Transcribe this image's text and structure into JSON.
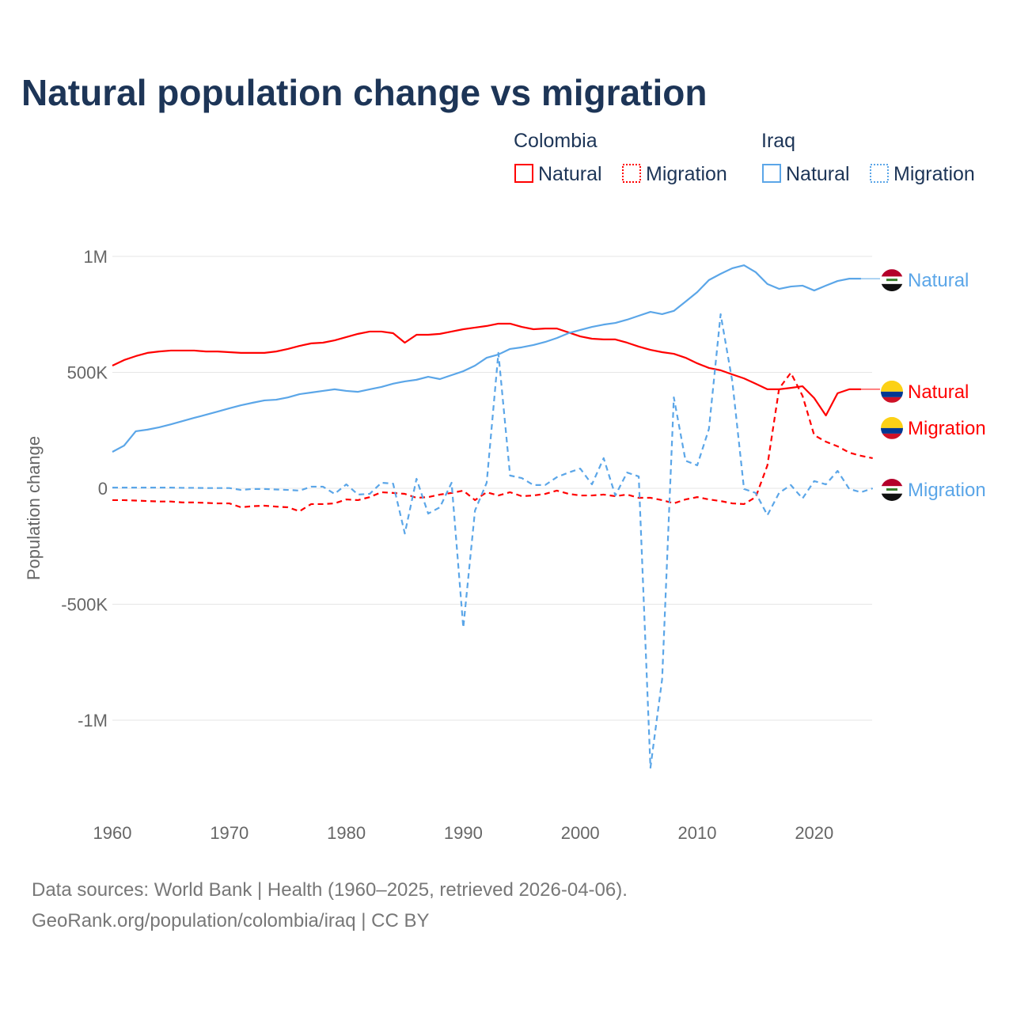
{
  "title": "Natural population change vs migration",
  "legend": {
    "groups": [
      {
        "name": "Colombia",
        "items": [
          "Natural",
          "Migration"
        ],
        "color": "#ff0000"
      },
      {
        "name": "Iraq",
        "items": [
          "Natural",
          "Migration"
        ],
        "color": "#5ba6e8"
      }
    ]
  },
  "footer": {
    "line1": "Data sources: World Bank | Health (1960–2025, retrieved 2026-04-06).",
    "line2": "GeoRank.org/population/colombia/iraq | CC BY"
  },
  "chart_data": {
    "type": "line",
    "title": "Natural population change vs migration",
    "xlabel": "",
    "ylabel": "Population change",
    "xlim": [
      1960,
      2025
    ],
    "ylim": [
      -1200000,
      1050000
    ],
    "x_ticks": [
      "1960",
      "1970",
      "1980",
      "1990",
      "2000",
      "2010",
      "2020"
    ],
    "y_ticks": [
      {
        "v": 1000000,
        "label": "1M"
      },
      {
        "v": 500000,
        "label": "500K"
      },
      {
        "v": 0,
        "label": "0"
      },
      {
        "v": -500000,
        "label": "-500K"
      },
      {
        "v": -1000000,
        "label": "-1M"
      }
    ],
    "grid": true,
    "start_year": 1960,
    "series": [
      {
        "name": "Colombia Natural",
        "label": "Natural",
        "color": "#ff0000",
        "dash": false,
        "flag": "colombia",
        "values_k": [
          529,
          553,
          570,
          584,
          590,
          594,
          594,
          594,
          590,
          590,
          587,
          584,
          584,
          584,
          590,
          601,
          614,
          625,
          628,
          638,
          652,
          666,
          676,
          676,
          669,
          628,
          662,
          662,
          666,
          676,
          686,
          693,
          700,
          710,
          710,
          696,
          686,
          689,
          689,
          672,
          655,
          645,
          642,
          642,
          628,
          611,
          597,
          587,
          580,
          563,
          539,
          519,
          509,
          491,
          474,
          451,
          427,
          427,
          433,
          440,
          389,
          314,
          410,
          427,
          427
        ]
      },
      {
        "name": "Colombia Migration",
        "label": "Migration",
        "color": "#ff0000",
        "dash": true,
        "flag": "colombia",
        "values_k": [
          -51,
          -51,
          -53,
          -55,
          -57,
          -57,
          -61,
          -61,
          -63,
          -65,
          -65,
          -82,
          -77,
          -75,
          -79,
          -82,
          -99,
          -68,
          -68,
          -65,
          -48,
          -51,
          -38,
          -17,
          -20,
          -24,
          -41,
          -38,
          -27,
          -20,
          -10,
          -51,
          -17,
          -31,
          -17,
          -34,
          -31,
          -24,
          -10,
          -24,
          -31,
          -31,
          -27,
          -34,
          -27,
          -41,
          -41,
          -51,
          -65,
          -48,
          -38,
          -48,
          -55,
          -65,
          -68,
          -38,
          99,
          430,
          498,
          399,
          229,
          201,
          181,
          154,
          140,
          130
        ]
      },
      {
        "name": "Iraq Natural",
        "label": "Natural",
        "color": "#5ba6e8",
        "dash": false,
        "flag": "iraq",
        "values_k": [
          157,
          184,
          246,
          253,
          263,
          276,
          290,
          304,
          317,
          331,
          345,
          358,
          369,
          379,
          382,
          392,
          406,
          413,
          420,
          427,
          420,
          416,
          427,
          437,
          451,
          461,
          468,
          481,
          471,
          488,
          505,
          529,
          563,
          577,
          601,
          608,
          618,
          631,
          648,
          669,
          683,
          696,
          706,
          713,
          727,
          744,
          761,
          751,
          765,
          805,
          846,
          898,
          925,
          949,
          962,
          932,
          881,
          860,
          870,
          874,
          853,
          874,
          894,
          904,
          904
        ]
      },
      {
        "name": "Iraq Migration",
        "label": "Migration",
        "color": "#5ba6e8",
        "dash": true,
        "flag": "iraq",
        "values_k": [
          3,
          3,
          3,
          3,
          3,
          3,
          2,
          2,
          1,
          1,
          1,
          -7,
          -3,
          -3,
          -5,
          -7,
          -10,
          7,
          7,
          -24,
          17,
          -27,
          -24,
          24,
          20,
          -195,
          41,
          -109,
          -82,
          24,
          -601,
          -96,
          24,
          584,
          55,
          44,
          14,
          14,
          48,
          68,
          85,
          17,
          130,
          -31,
          68,
          51,
          -1205,
          -823,
          392,
          119,
          99,
          256,
          751,
          461,
          -3,
          -20,
          -116,
          -20,
          14,
          -44,
          31,
          17,
          75,
          -3,
          -17,
          0
        ]
      }
    ]
  }
}
